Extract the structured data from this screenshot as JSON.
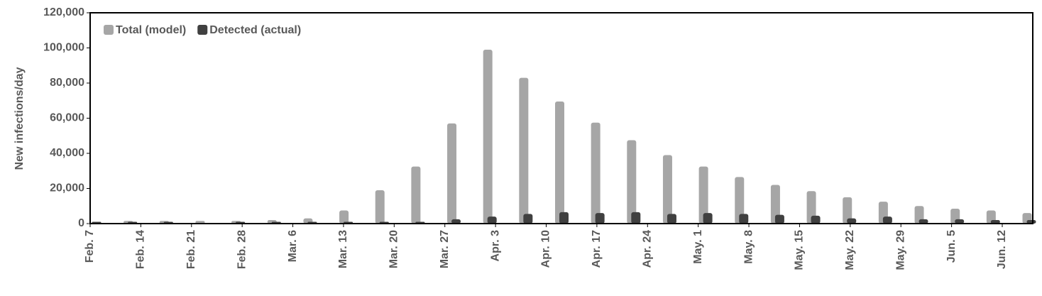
{
  "chart_data": {
    "type": "bar",
    "y_label": "New infections/day",
    "categories": [
      null,
      null,
      null,
      null,
      null,
      null,
      null,
      null,
      null,
      null,
      null,
      null,
      null,
      null,
      null,
      null,
      null,
      null,
      null,
      null,
      null,
      null,
      null,
      null,
      null,
      null,
      null
    ],
    "xtick_labels": [
      "Feb. 7",
      "Feb. 14",
      "Feb. 21",
      "Feb. 28",
      "Mar. 6",
      "Mar. 13",
      "Mar. 20",
      "Mar. 27",
      "Apr. 3",
      "Apr. 10",
      "Apr. 17",
      "Apr. 24",
      "May. 1",
      "May. 8",
      "May. 15",
      "May. 22",
      "May. 29",
      "Jun. 5",
      "Jun. 12"
    ],
    "series": [
      {
        "name": "Total (model)",
        "color": "#a6a6a6",
        "values": [
          500,
          1500,
          1500,
          1500,
          1500,
          2000,
          3000,
          7500,
          19000,
          32500,
          57000,
          99000,
          83000,
          69500,
          57500,
          47500,
          39000,
          32500,
          26500,
          22000,
          18500,
          15000,
          12500,
          10000,
          8500,
          7500,
          6000
        ]
      },
      {
        "name": "Detected (actual)",
        "color": "#404040",
        "values": [
          1000,
          1000,
          1000,
          0,
          1000,
          1000,
          1000,
          1000,
          1000,
          1000,
          2500,
          4000,
          5500,
          6500,
          6000,
          6500,
          5500,
          6000,
          5500,
          5000,
          4500,
          3000,
          4000,
          2500,
          2500,
          2000,
          2000
        ]
      }
    ],
    "ylim": [
      0,
      120000
    ],
    "yticks": [
      0,
      {
        "value": 20000,
        "label": "20,000"
      },
      {
        "value": 40000,
        "label": "40,000"
      },
      {
        "value": 60000,
        "label": "60,000"
      },
      {
        "value": 80000,
        "label": "80,000"
      },
      {
        "value": 100000,
        "label": "100,000"
      },
      {
        "value": 120000,
        "label": "120,000"
      }
    ],
    "legend": "top-left"
  }
}
